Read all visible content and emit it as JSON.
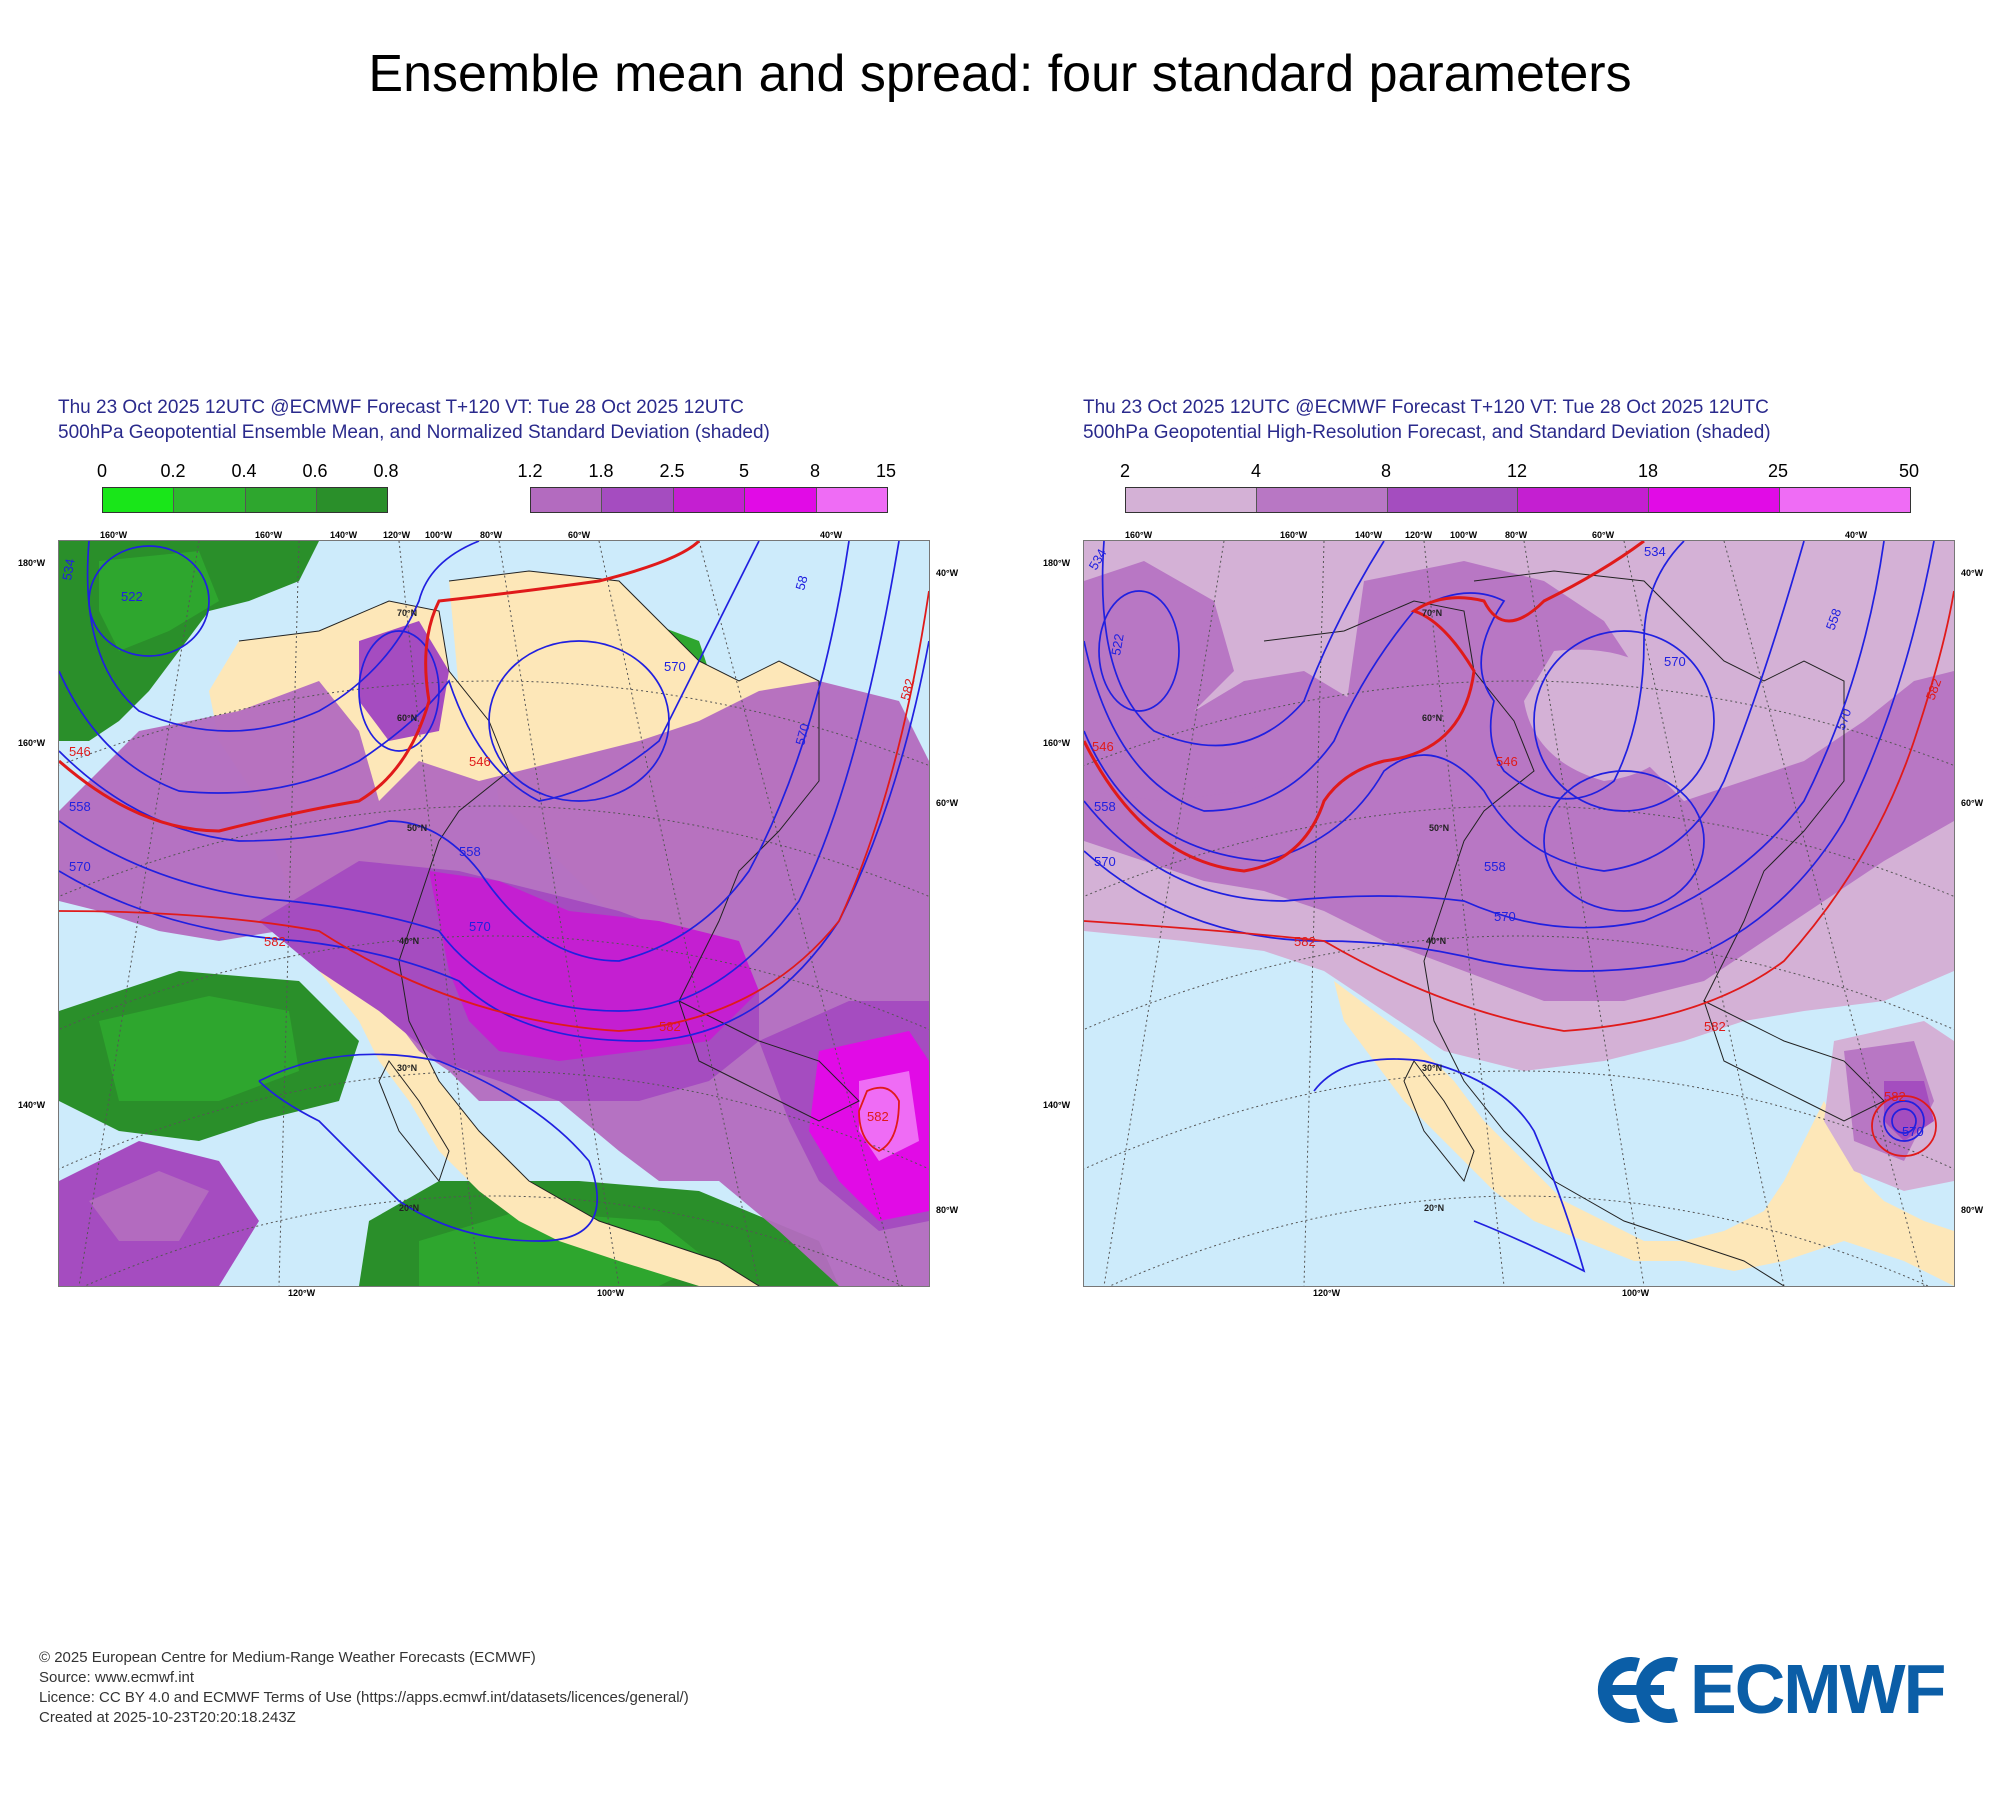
{
  "page": {
    "title": "Ensemble mean and spread: four standard parameters"
  },
  "panels": [
    {
      "header_line1": "Thu 23 Oct 2025 12UTC @ECMWF Forecast T+120 VT: Tue 28 Oct 2025 12UTC",
      "header_line2": "500hPa Geopotential Ensemble Mean, and Normalized Standard Deviation (shaded)",
      "legend_green": {
        "ticks": [
          "0",
          "0.2",
          "0.4",
          "0.6",
          "0.8"
        ],
        "colors": [
          "#19e619",
          "#2eb82e",
          "#2ea62e",
          "#2a8f2a"
        ]
      },
      "legend_purple": {
        "ticks": [
          "1.2",
          "1.8",
          "2.5",
          "5",
          "8",
          "15"
        ],
        "colors": [
          "#b36bbf",
          "#a54cc0",
          "#c41fd1",
          "#e10be6",
          "#ef6cf5"
        ]
      },
      "contours": {
        "blue": [
          "522",
          "534",
          "546",
          "558",
          "570",
          "58"
        ],
        "red": [
          "546",
          "582"
        ]
      }
    },
    {
      "header_line1": "Thu 23 Oct 2025 12UTC @ECMWF Forecast T+120 VT: Tue 28 Oct 2025 12UTC",
      "header_line2": "500hPa Geopotential High-Resolution Forecast, and Standard Deviation (shaded)",
      "legend": {
        "ticks": [
          "2",
          "4",
          "8",
          "12",
          "18",
          "25",
          "50"
        ],
        "colors": [
          "#d4b1d6",
          "#b877c4",
          "#a44dbf",
          "#c41fd1",
          "#e10be6",
          "#ef6cf5"
        ]
      },
      "contours": {
        "blue": [
          "522",
          "534",
          "546",
          "558",
          "570"
        ],
        "red": [
          "546",
          "582"
        ]
      }
    }
  ],
  "map_labels": {
    "lon_top": [
      "160°W",
      "160°W",
      "140°W",
      "120°W",
      "100°W",
      "80°W",
      "60°W",
      "40°W"
    ],
    "lon_bottom": [
      "120°W",
      "100°W"
    ],
    "lat_left": [
      "180°W",
      "160°W",
      "140°W"
    ],
    "lat_right": [
      "40°W",
      "60°W",
      "80°W"
    ],
    "lat_circles": [
      "60°N",
      "50°N",
      "40°N",
      "30°N",
      "20°N",
      "70°N",
      "40°N",
      "50°N"
    ]
  },
  "colors": {
    "ocean": "#cdebfb",
    "land": "#fde7b8",
    "blue_contour": "#2020e0",
    "red_contour": "#e01a1a"
  },
  "footer": {
    "line1": "© 2025 European Centre for Medium-Range Weather Forecasts (ECMWF)",
    "line2": "Source: www.ecmwf.int",
    "line3": "Licence: CC BY 4.0 and ECMWF Terms of Use (https://apps.ecmwf.int/datasets/licences/general/)",
    "line4": "Created at 2025-10-23T20:20:18.243Z"
  },
  "logo": {
    "text": "ECMWF"
  }
}
